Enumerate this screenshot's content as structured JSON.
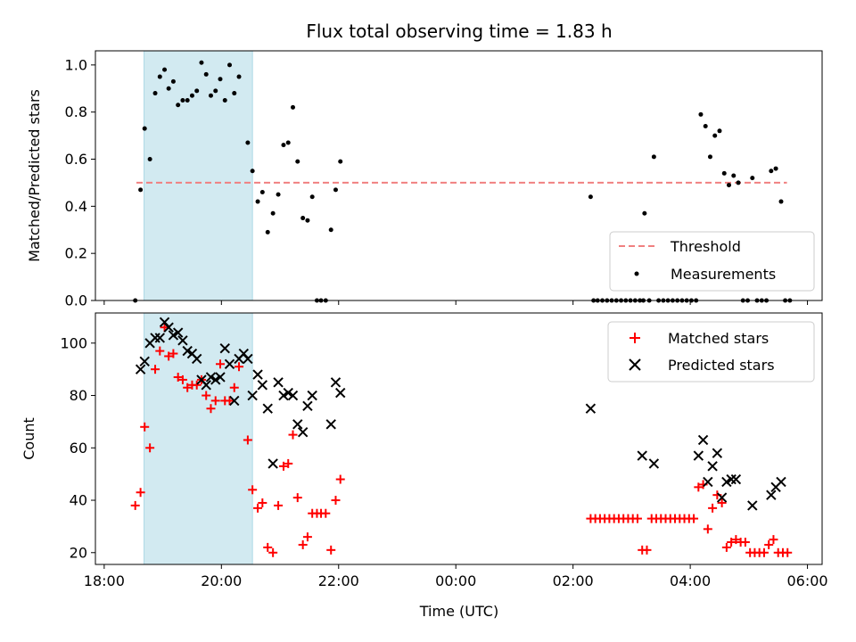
{
  "figure": {
    "title": "Flux total observing time = 1.83 h",
    "shared_x": {
      "label": "Time (UTC)",
      "range_hours": [
        17.85,
        30.25
      ],
      "ticks": [
        {
          "hour": 18,
          "label": "18:00"
        },
        {
          "hour": 20,
          "label": "20:00"
        },
        {
          "hour": 22,
          "label": "22:00"
        },
        {
          "hour": 24,
          "label": "00:00"
        },
        {
          "hour": 26,
          "label": "02:00"
        },
        {
          "hour": 28,
          "label": "04:00"
        },
        {
          "hour": 30,
          "label": "06:00"
        }
      ]
    },
    "highlight_window_hours": [
      18.68,
      20.53
    ],
    "highlight_color": "#add8e6"
  },
  "chart_data": [
    {
      "type": "scatter",
      "ylabel": "Matched/Predicted stars",
      "ylim": [
        0,
        1.06
      ],
      "yticks": [
        0.0,
        0.2,
        0.4,
        0.6,
        0.8,
        1.0
      ],
      "legend_placement": "lower-right",
      "threshold": {
        "name": "Threshold",
        "value": 0.5,
        "x_range": [
          18.55,
          29.65
        ],
        "color": "#f08080"
      },
      "series": [
        {
          "name": "Measurements",
          "color": "#000000",
          "points": [
            [
              18.53,
              0.0
            ],
            [
              18.62,
              0.47
            ],
            [
              18.69,
              0.73
            ],
            [
              18.78,
              0.6
            ],
            [
              18.87,
              0.88
            ],
            [
              18.95,
              0.95
            ],
            [
              19.03,
              0.98
            ],
            [
              19.1,
              0.9
            ],
            [
              19.18,
              0.93
            ],
            [
              19.26,
              0.83
            ],
            [
              19.34,
              0.85
            ],
            [
              19.42,
              0.85
            ],
            [
              19.5,
              0.87
            ],
            [
              19.58,
              0.89
            ],
            [
              19.66,
              1.01
            ],
            [
              19.74,
              0.96
            ],
            [
              19.82,
              0.87
            ],
            [
              19.9,
              0.89
            ],
            [
              19.98,
              0.94
            ],
            [
              20.06,
              0.85
            ],
            [
              20.14,
              1.0
            ],
            [
              20.22,
              0.88
            ],
            [
              20.3,
              0.95
            ],
            [
              20.45,
              0.67
            ],
            [
              20.53,
              0.55
            ],
            [
              20.62,
              0.42
            ],
            [
              20.7,
              0.46
            ],
            [
              20.79,
              0.29
            ],
            [
              20.88,
              0.37
            ],
            [
              20.97,
              0.45
            ],
            [
              21.06,
              0.66
            ],
            [
              21.14,
              0.67
            ],
            [
              21.22,
              0.82
            ],
            [
              21.3,
              0.59
            ],
            [
              21.39,
              0.35
            ],
            [
              21.47,
              0.34
            ],
            [
              21.55,
              0.44
            ],
            [
              21.63,
              0.0
            ],
            [
              21.7,
              0.0
            ],
            [
              21.78,
              0.0
            ],
            [
              21.87,
              0.3
            ],
            [
              21.95,
              0.47
            ],
            [
              22.03,
              0.59
            ],
            [
              26.3,
              0.44
            ],
            [
              26.35,
              0.0
            ],
            [
              26.42,
              0.0
            ],
            [
              26.5,
              0.0
            ],
            [
              26.58,
              0.0
            ],
            [
              26.66,
              0.0
            ],
            [
              26.74,
              0.0
            ],
            [
              26.82,
              0.0
            ],
            [
              26.9,
              0.0
            ],
            [
              26.98,
              0.0
            ],
            [
              27.06,
              0.0
            ],
            [
              27.14,
              0.0
            ],
            [
              27.2,
              0.0
            ],
            [
              27.22,
              0.37
            ],
            [
              27.3,
              0.0
            ],
            [
              27.38,
              0.61
            ],
            [
              27.46,
              0.0
            ],
            [
              27.54,
              0.0
            ],
            [
              27.62,
              0.0
            ],
            [
              27.7,
              0.0
            ],
            [
              27.78,
              0.0
            ],
            [
              27.86,
              0.0
            ],
            [
              27.94,
              0.0
            ],
            [
              28.02,
              0.0
            ],
            [
              28.1,
              0.0
            ],
            [
              28.18,
              0.79
            ],
            [
              28.26,
              0.74
            ],
            [
              28.34,
              0.61
            ],
            [
              28.42,
              0.7
            ],
            [
              28.5,
              0.72
            ],
            [
              28.58,
              0.54
            ],
            [
              28.66,
              0.49
            ],
            [
              28.74,
              0.53
            ],
            [
              28.82,
              0.5
            ],
            [
              28.9,
              0.0
            ],
            [
              28.98,
              0.0
            ],
            [
              29.06,
              0.52
            ],
            [
              29.14,
              0.0
            ],
            [
              29.22,
              0.0
            ],
            [
              29.3,
              0.0
            ],
            [
              29.38,
              0.55
            ],
            [
              29.46,
              0.56
            ],
            [
              29.55,
              0.42
            ],
            [
              29.62,
              0.0
            ],
            [
              29.7,
              0.0
            ]
          ]
        }
      ]
    },
    {
      "type": "scatter",
      "ylabel": "Count",
      "ylim": [
        15.5,
        111.5
      ],
      "yticks": [
        20,
        40,
        60,
        80,
        100
      ],
      "legend_placement": "upper-right",
      "series": [
        {
          "name": "Matched stars",
          "marker": "plus",
          "color": "#ff0000",
          "points": [
            [
              18.53,
              38
            ],
            [
              18.62,
              43
            ],
            [
              18.69,
              68
            ],
            [
              18.78,
              60
            ],
            [
              18.87,
              90
            ],
            [
              18.95,
              97
            ],
            [
              19.03,
              106
            ],
            [
              19.1,
              95
            ],
            [
              19.18,
              96
            ],
            [
              19.26,
              87
            ],
            [
              19.34,
              86
            ],
            [
              19.42,
              83
            ],
            [
              19.5,
              84
            ],
            [
              19.58,
              84
            ],
            [
              19.66,
              86
            ],
            [
              19.74,
              80
            ],
            [
              19.82,
              75
            ],
            [
              19.9,
              78
            ],
            [
              19.98,
              92
            ],
            [
              20.06,
              78
            ],
            [
              20.14,
              78
            ],
            [
              20.22,
              83
            ],
            [
              20.3,
              91
            ],
            [
              20.45,
              63
            ],
            [
              20.53,
              44
            ],
            [
              20.62,
              37
            ],
            [
              20.7,
              39
            ],
            [
              20.79,
              22
            ],
            [
              20.88,
              20
            ],
            [
              20.97,
              38
            ],
            [
              21.06,
              53
            ],
            [
              21.14,
              54
            ],
            [
              21.22,
              65
            ],
            [
              21.3,
              41
            ],
            [
              21.39,
              23
            ],
            [
              21.47,
              26
            ],
            [
              21.55,
              35
            ],
            [
              21.63,
              35
            ],
            [
              21.7,
              35
            ],
            [
              21.78,
              35
            ],
            [
              21.87,
              21
            ],
            [
              21.95,
              40
            ],
            [
              22.03,
              48
            ],
            [
              26.3,
              33
            ],
            [
              26.38,
              33
            ],
            [
              26.46,
              33
            ],
            [
              26.54,
              33
            ],
            [
              26.62,
              33
            ],
            [
              26.7,
              33
            ],
            [
              26.78,
              33
            ],
            [
              26.86,
              33
            ],
            [
              26.94,
              33
            ],
            [
              27.02,
              33
            ],
            [
              27.1,
              33
            ],
            [
              27.18,
              21
            ],
            [
              27.26,
              21
            ],
            [
              27.34,
              33
            ],
            [
              27.42,
              33
            ],
            [
              27.5,
              33
            ],
            [
              27.58,
              33
            ],
            [
              27.66,
              33
            ],
            [
              27.74,
              33
            ],
            [
              27.82,
              33
            ],
            [
              27.9,
              33
            ],
            [
              27.98,
              33
            ],
            [
              28.06,
              33
            ],
            [
              28.14,
              45
            ],
            [
              28.22,
              46
            ],
            [
              28.3,
              29
            ],
            [
              28.38,
              37
            ],
            [
              28.46,
              42
            ],
            [
              28.54,
              39
            ],
            [
              28.62,
              22
            ],
            [
              28.7,
              24
            ],
            [
              28.78,
              25
            ],
            [
              28.86,
              24
            ],
            [
              28.94,
              24
            ],
            [
              29.02,
              20
            ],
            [
              29.1,
              20
            ],
            [
              29.18,
              20
            ],
            [
              29.26,
              20
            ],
            [
              29.34,
              23
            ],
            [
              29.42,
              25
            ],
            [
              29.5,
              20
            ],
            [
              29.58,
              20
            ],
            [
              29.66,
              20
            ]
          ]
        },
        {
          "name": "Predicted stars",
          "marker": "x",
          "color": "#000000",
          "points": [
            [
              18.62,
              90
            ],
            [
              18.69,
              93
            ],
            [
              18.78,
              100
            ],
            [
              18.87,
              102
            ],
            [
              18.95,
              102
            ],
            [
              19.03,
              108
            ],
            [
              19.1,
              106
            ],
            [
              19.18,
              103
            ],
            [
              19.26,
              104
            ],
            [
              19.34,
              101
            ],
            [
              19.42,
              97
            ],
            [
              19.5,
              96
            ],
            [
              19.58,
              94
            ],
            [
              19.66,
              86
            ],
            [
              19.74,
              84
            ],
            [
              19.82,
              87
            ],
            [
              19.9,
              86
            ],
            [
              19.98,
              87
            ],
            [
              20.06,
              98
            ],
            [
              20.14,
              92
            ],
            [
              20.22,
              78
            ],
            [
              20.3,
              94
            ],
            [
              20.38,
              96
            ],
            [
              20.45,
              94
            ],
            [
              20.53,
              80
            ],
            [
              20.62,
              88
            ],
            [
              20.7,
              84
            ],
            [
              20.79,
              75
            ],
            [
              20.88,
              54
            ],
            [
              20.97,
              85
            ],
            [
              21.06,
              80
            ],
            [
              21.14,
              81
            ],
            [
              21.22,
              80
            ],
            [
              21.3,
              69
            ],
            [
              21.39,
              66
            ],
            [
              21.47,
              76
            ],
            [
              21.55,
              80
            ],
            [
              21.87,
              69
            ],
            [
              21.95,
              85
            ],
            [
              22.03,
              81
            ],
            [
              26.3,
              75
            ],
            [
              27.18,
              57
            ],
            [
              27.38,
              54
            ],
            [
              28.14,
              57
            ],
            [
              28.22,
              63
            ],
            [
              28.3,
              47
            ],
            [
              28.38,
              53
            ],
            [
              28.46,
              58
            ],
            [
              28.54,
              41
            ],
            [
              28.62,
              47
            ],
            [
              28.7,
              48
            ],
            [
              28.78,
              48
            ],
            [
              29.06,
              38
            ],
            [
              29.38,
              42
            ],
            [
              29.46,
              45
            ],
            [
              29.55,
              47
            ]
          ]
        }
      ]
    }
  ]
}
